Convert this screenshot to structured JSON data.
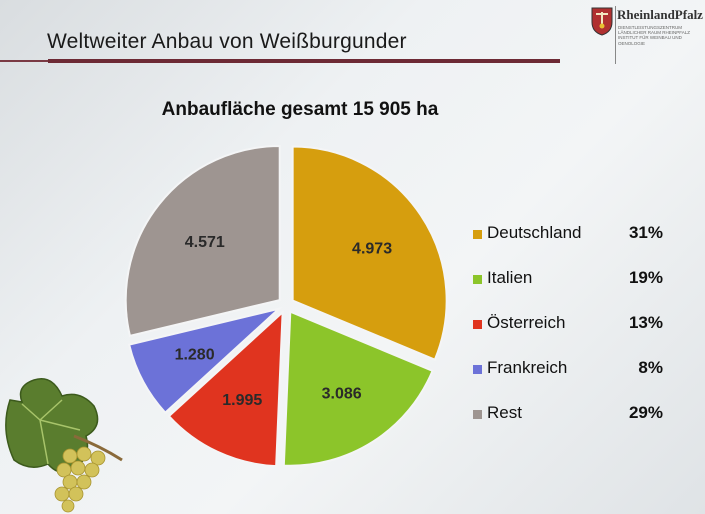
{
  "slide": {
    "title": "Weltweiter Anbau von Weißburgunder",
    "logo": {
      "name": "RheinlandPfalz",
      "subtitle": "DIENSTLEISTUNGSZENTRUM LÄNDLICHER RAUM RHEINPFALZ INSTITUT FÜR WEINBAU UND OENOLOGIE"
    },
    "colors": {
      "title_rule": "#6d2a35"
    }
  },
  "chart_data": {
    "type": "pie",
    "title": "Anbaufläche gesamt 15 905 ha",
    "slices": [
      {
        "name": "Deutschland",
        "value": 4973,
        "label": "4.973",
        "percent": "31%",
        "color": "#d69e0e"
      },
      {
        "name": "Italien",
        "value": 3086,
        "label": "3.086",
        "percent": "19%",
        "color": "#8cc52a"
      },
      {
        "name": "Österreich",
        "value": 1995,
        "label": "1.995",
        "percent": "13%",
        "color": "#e0341f"
      },
      {
        "name": "Frankreich",
        "value": 1280,
        "label": "1.280",
        "percent": "8%",
        "color": "#6c72d8"
      },
      {
        "name": "Rest",
        "value": 4571,
        "label": "4.571",
        "percent": "29%",
        "color": "#9e9591"
      }
    ],
    "legend_position": "right"
  }
}
